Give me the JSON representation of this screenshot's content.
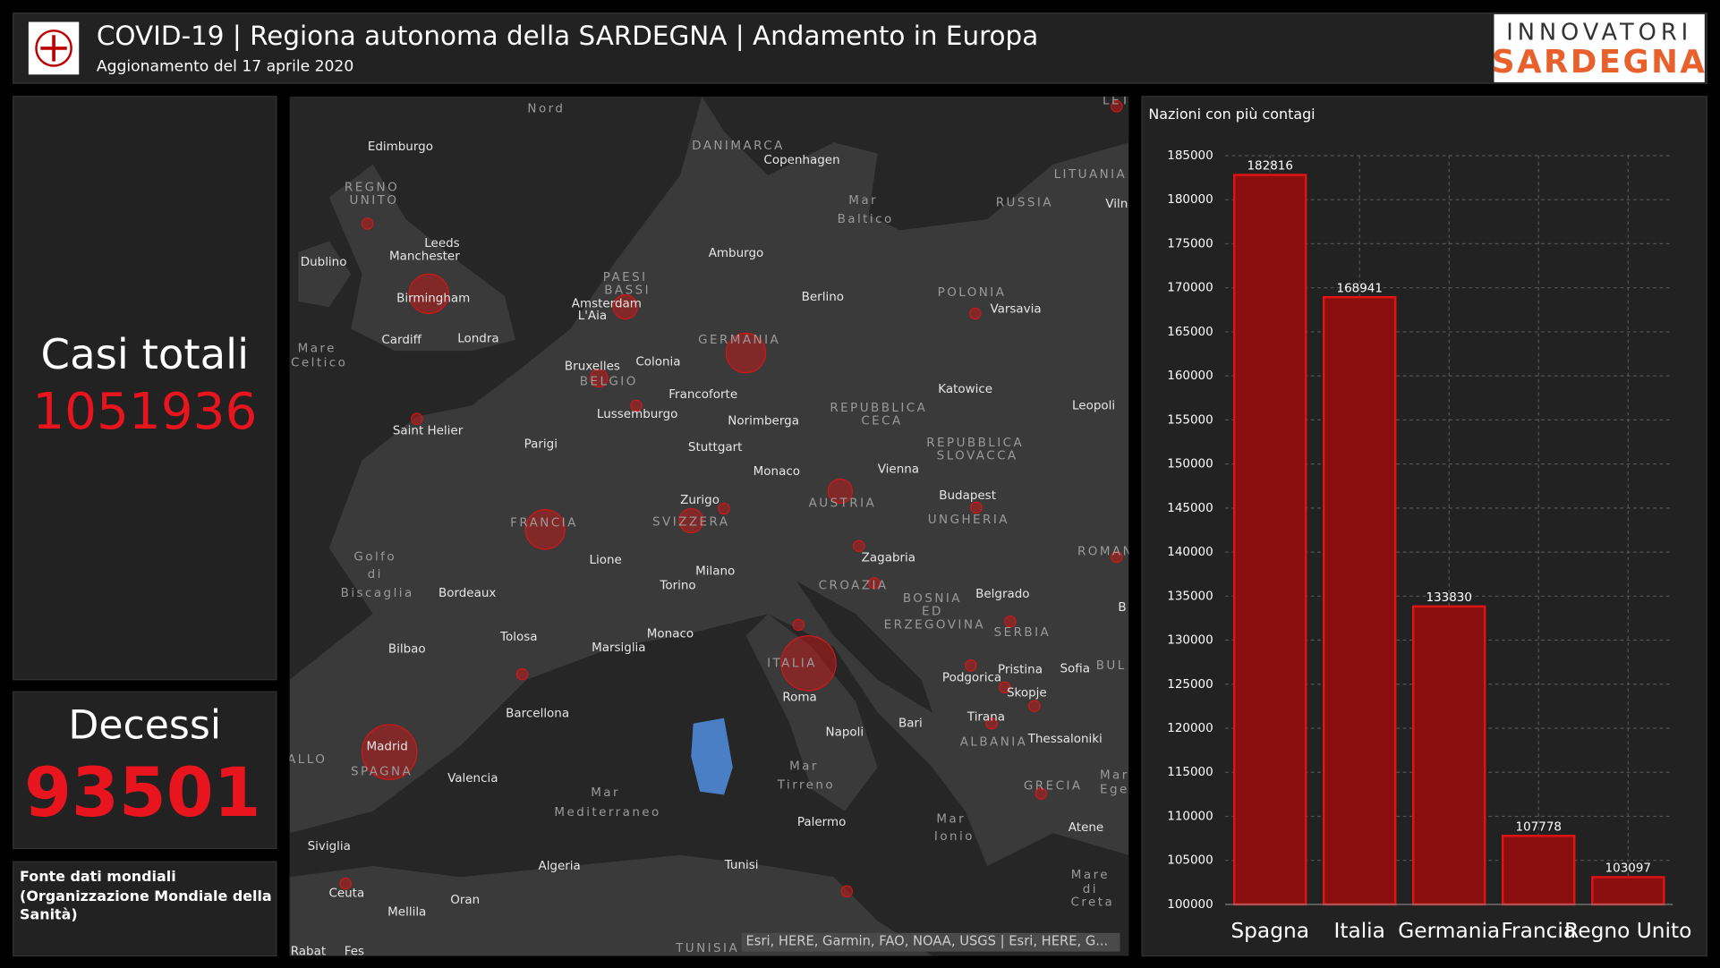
{
  "header": {
    "title": "COVID-19 | Regiona autonoma della SARDEGNA | Andamento in Europa",
    "subtitle": "Aggionamento del 17 aprile 2020"
  },
  "logo": {
    "top": "INNOVATORI",
    "bottom": "SARDEGNA"
  },
  "stats": [
    {
      "label": "Casi totali",
      "value": 1051936
    },
    {
      "label": "Decessi",
      "value": 93501
    }
  ],
  "source": {
    "lines": [
      "Fonte dati mondiali",
      "(Organizzazione Mondiale della",
      "Sanità)"
    ]
  },
  "map": {
    "attribution": "Esri, HERE, Garmin, FAO, NOAA, USGS | Esri, HERE, G...",
    "labels": [
      "Nord",
      "Edimburgo",
      "REGNO",
      "UNITO",
      "Dublino",
      "Leeds",
      "Manchester",
      "Birmingham",
      "Cardiff",
      "Londra",
      "Mare",
      "Celtico",
      "DANIMARCA",
      "Copenhagen",
      "Mar",
      "Baltico",
      "LITUANIA",
      "RUSSIA",
      "Viln",
      "PAESI",
      "BASSI",
      "Amsterdam",
      "L'Aia",
      "Amburgo",
      "Berlino",
      "POLONIA",
      "Varsavia",
      "GERMANIA",
      "Bruxelles",
      "BELGIO",
      "Colonia",
      "Francoforte",
      "Lussemburgo",
      "Norimberga",
      "REPUBBLICA",
      "CECA",
      "Katowice",
      "Leopoli",
      "Saint Helier",
      "Parigi",
      "Stuttgart",
      "REPUBBLICA",
      "SLOVACCA",
      "Monaco",
      "Vienna",
      "Budapest",
      "Zurigo",
      "AUSTRIA",
      "SVIZZERA",
      "FRANCIA",
      "UNGHERIA",
      "ROMAN",
      "Golfo",
      "di",
      "Biscaglia",
      "Lione",
      "Zagabria",
      "Milano",
      "Torino",
      "CROAZIA",
      "Bordeaux",
      "BOSNIA",
      "ED",
      "ERZEGOVINA",
      "Belgrado",
      "B",
      "SERBIA",
      "Tolosa",
      "Monaco",
      "Marsiglia",
      "Bilbao",
      "ITALIA",
      "Pristina",
      "Sofia",
      "BUL",
      "Podgorica",
      "Skopje",
      "Roma",
      "Barcellona",
      "Bari",
      "Tirana",
      "Napoli",
      "Madrid",
      "ALBANIA",
      "Thessaloniki",
      "ALLO",
      "SPAGNA",
      "Mar",
      "Tirreno",
      "Valencia",
      "GRECIA",
      "Mar",
      "Ege",
      "Mar",
      "Mediterraneo",
      "Palermo",
      "Mar",
      "Ionio",
      "Atene",
      "Siviglia",
      "Algeria",
      "Tunisi",
      "Mare",
      "di",
      "Creta",
      "Ceuta",
      "Oran",
      "Mellila",
      "Rabat",
      "Fes",
      "TUNISIA",
      "LET"
    ]
  },
  "chart_data": {
    "type": "bar",
    "title": "Nazioni con più contagi",
    "categories": [
      "Spagna",
      "Italia",
      "Germania",
      "Francia",
      "Regno Unito"
    ],
    "values": [
      182816,
      168941,
      133830,
      107778,
      103097
    ],
    "color": "#8c0f0f",
    "edge_color": "#e01414",
    "ylim": [
      100000,
      185000
    ],
    "yticks": [
      100000,
      105000,
      110000,
      115000,
      120000,
      125000,
      130000,
      135000,
      140000,
      145000,
      150000,
      155000,
      160000,
      165000,
      170000,
      175000,
      180000,
      185000
    ],
    "grid": true
  }
}
